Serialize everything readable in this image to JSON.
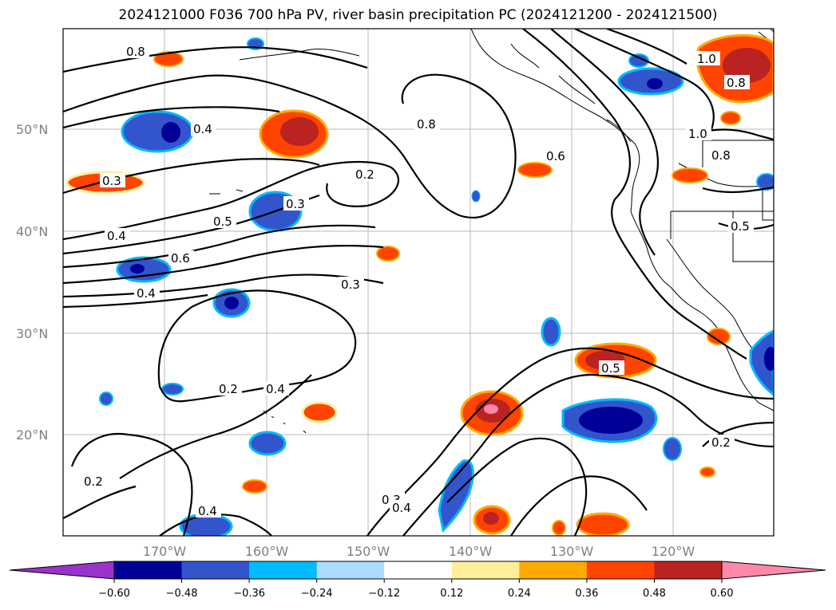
{
  "title": "2024121000 F036 700 hPa PV, river basin precipitation PC (2024121200 - 2024121500)",
  "lat_labels": [
    "50°N",
    "40°N",
    "30°N",
    "20°N"
  ],
  "lon_labels": [
    "170°W",
    "160°W",
    "150°W",
    "140°W",
    "130°W",
    "120°W"
  ],
  "contour_labels": [
    "0.8",
    "0.4",
    "0.3",
    "0.8",
    "0.2",
    "0.3",
    "0.5",
    "0.4",
    "0.6",
    "0.4",
    "0.3",
    "0.2",
    "0.4",
    "0.2",
    "0.4",
    "0.3",
    "0.4",
    "0.6",
    "0.5",
    "0.2",
    "1.0",
    "0.8",
    "1.0",
    "0.8",
    "0.5"
  ],
  "colorbar": {
    "colors": [
      "#9933cc",
      "#000099",
      "#3355cc",
      "#00bbff",
      "#aaddff",
      "#ffffff",
      "#ffee99",
      "#ffaa00",
      "#ff4400",
      "#bb2222",
      "#ff88aa"
    ],
    "tick_labels": [
      "−0.60",
      "−0.48",
      "−0.36",
      "−0.24",
      "−0.12",
      "0.12",
      "0.24",
      "0.36",
      "0.48",
      "0.60"
    ]
  }
}
